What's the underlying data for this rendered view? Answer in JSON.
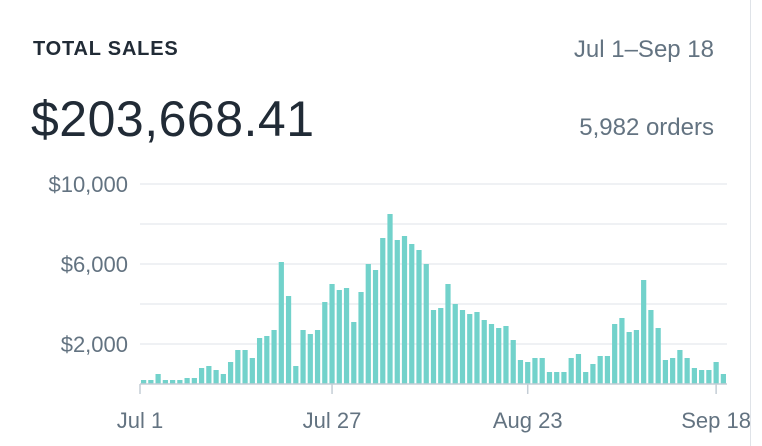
{
  "card": {
    "title": "TOTAL SALES",
    "date_range": "Jul 1–Sep 18",
    "total": "$203,668.41",
    "orders": "5,982 orders"
  },
  "colors": {
    "bar": "#72d2cb",
    "grid": "#dfe3e8",
    "axis": "#c4cdd5",
    "label": "#637381",
    "heading": "#212b36"
  },
  "chart_data": {
    "type": "bar",
    "title": "TOTAL SALES",
    "xlabel": "",
    "ylabel": "",
    "ylim": [
      0,
      10000
    ],
    "grid": true,
    "legend": "none",
    "y_ticks": [
      {
        "value": 10000,
        "label": "$10,000"
      },
      {
        "value": 6000,
        "label": "$6,000"
      },
      {
        "value": 2000,
        "label": "$2,000"
      }
    ],
    "x_ticks": [
      {
        "index": 0,
        "label": "Jul 1"
      },
      {
        "index": 26,
        "label": "Jul 27"
      },
      {
        "index": 53,
        "label": "Aug 23"
      },
      {
        "index": 79,
        "label": "Sep 18"
      }
    ],
    "categories": [
      "Jul 1",
      "Jul 2",
      "Jul 3",
      "Jul 4",
      "Jul 5",
      "Jul 6",
      "Jul 7",
      "Jul 8",
      "Jul 9",
      "Jul 10",
      "Jul 11",
      "Jul 12",
      "Jul 13",
      "Jul 14",
      "Jul 15",
      "Jul 16",
      "Jul 17",
      "Jul 18",
      "Jul 19",
      "Jul 20",
      "Jul 21",
      "Jul 22",
      "Jul 23",
      "Jul 24",
      "Jul 25",
      "Jul 26",
      "Jul 27",
      "Jul 28",
      "Jul 29",
      "Jul 30",
      "Jul 31",
      "Aug 1",
      "Aug 2",
      "Aug 3",
      "Aug 4",
      "Aug 5",
      "Aug 6",
      "Aug 7",
      "Aug 8",
      "Aug 9",
      "Aug 10",
      "Aug 11",
      "Aug 12",
      "Aug 13",
      "Aug 14",
      "Aug 15",
      "Aug 16",
      "Aug 17",
      "Aug 18",
      "Aug 19",
      "Aug 20",
      "Aug 21",
      "Aug 22",
      "Aug 23",
      "Aug 24",
      "Aug 25",
      "Aug 26",
      "Aug 27",
      "Aug 28",
      "Aug 29",
      "Aug 30",
      "Aug 31",
      "Sep 1",
      "Sep 2",
      "Sep 3",
      "Sep 4",
      "Sep 5",
      "Sep 6",
      "Sep 7",
      "Sep 8",
      "Sep 9",
      "Sep 10",
      "Sep 11",
      "Sep 12",
      "Sep 13",
      "Sep 14",
      "Sep 15",
      "Sep 16",
      "Sep 17",
      "Sep 18"
    ],
    "values": [
      200,
      200,
      500,
      200,
      200,
      200,
      300,
      300,
      800,
      900,
      700,
      500,
      1100,
      1700,
      1700,
      1300,
      2300,
      2400,
      2700,
      6100,
      4400,
      900,
      2700,
      2500,
      2700,
      4100,
      5000,
      4700,
      4800,
      3100,
      4600,
      6000,
      5700,
      7300,
      8500,
      7200,
      7400,
      7000,
      6700,
      6000,
      3700,
      3800,
      5000,
      4000,
      3700,
      3500,
      3600,
      3200,
      3000,
      2800,
      2900,
      2200,
      1200,
      1100,
      1300,
      1300,
      600,
      600,
      600,
      1300,
      1500,
      600,
      1000,
      1400,
      1400,
      3000,
      3300,
      2600,
      2700,
      5200,
      3700,
      2800,
      1200,
      1300,
      1700,
      1300,
      800,
      700,
      700,
      1100
    ],
    "values_extra_last": 500
  }
}
